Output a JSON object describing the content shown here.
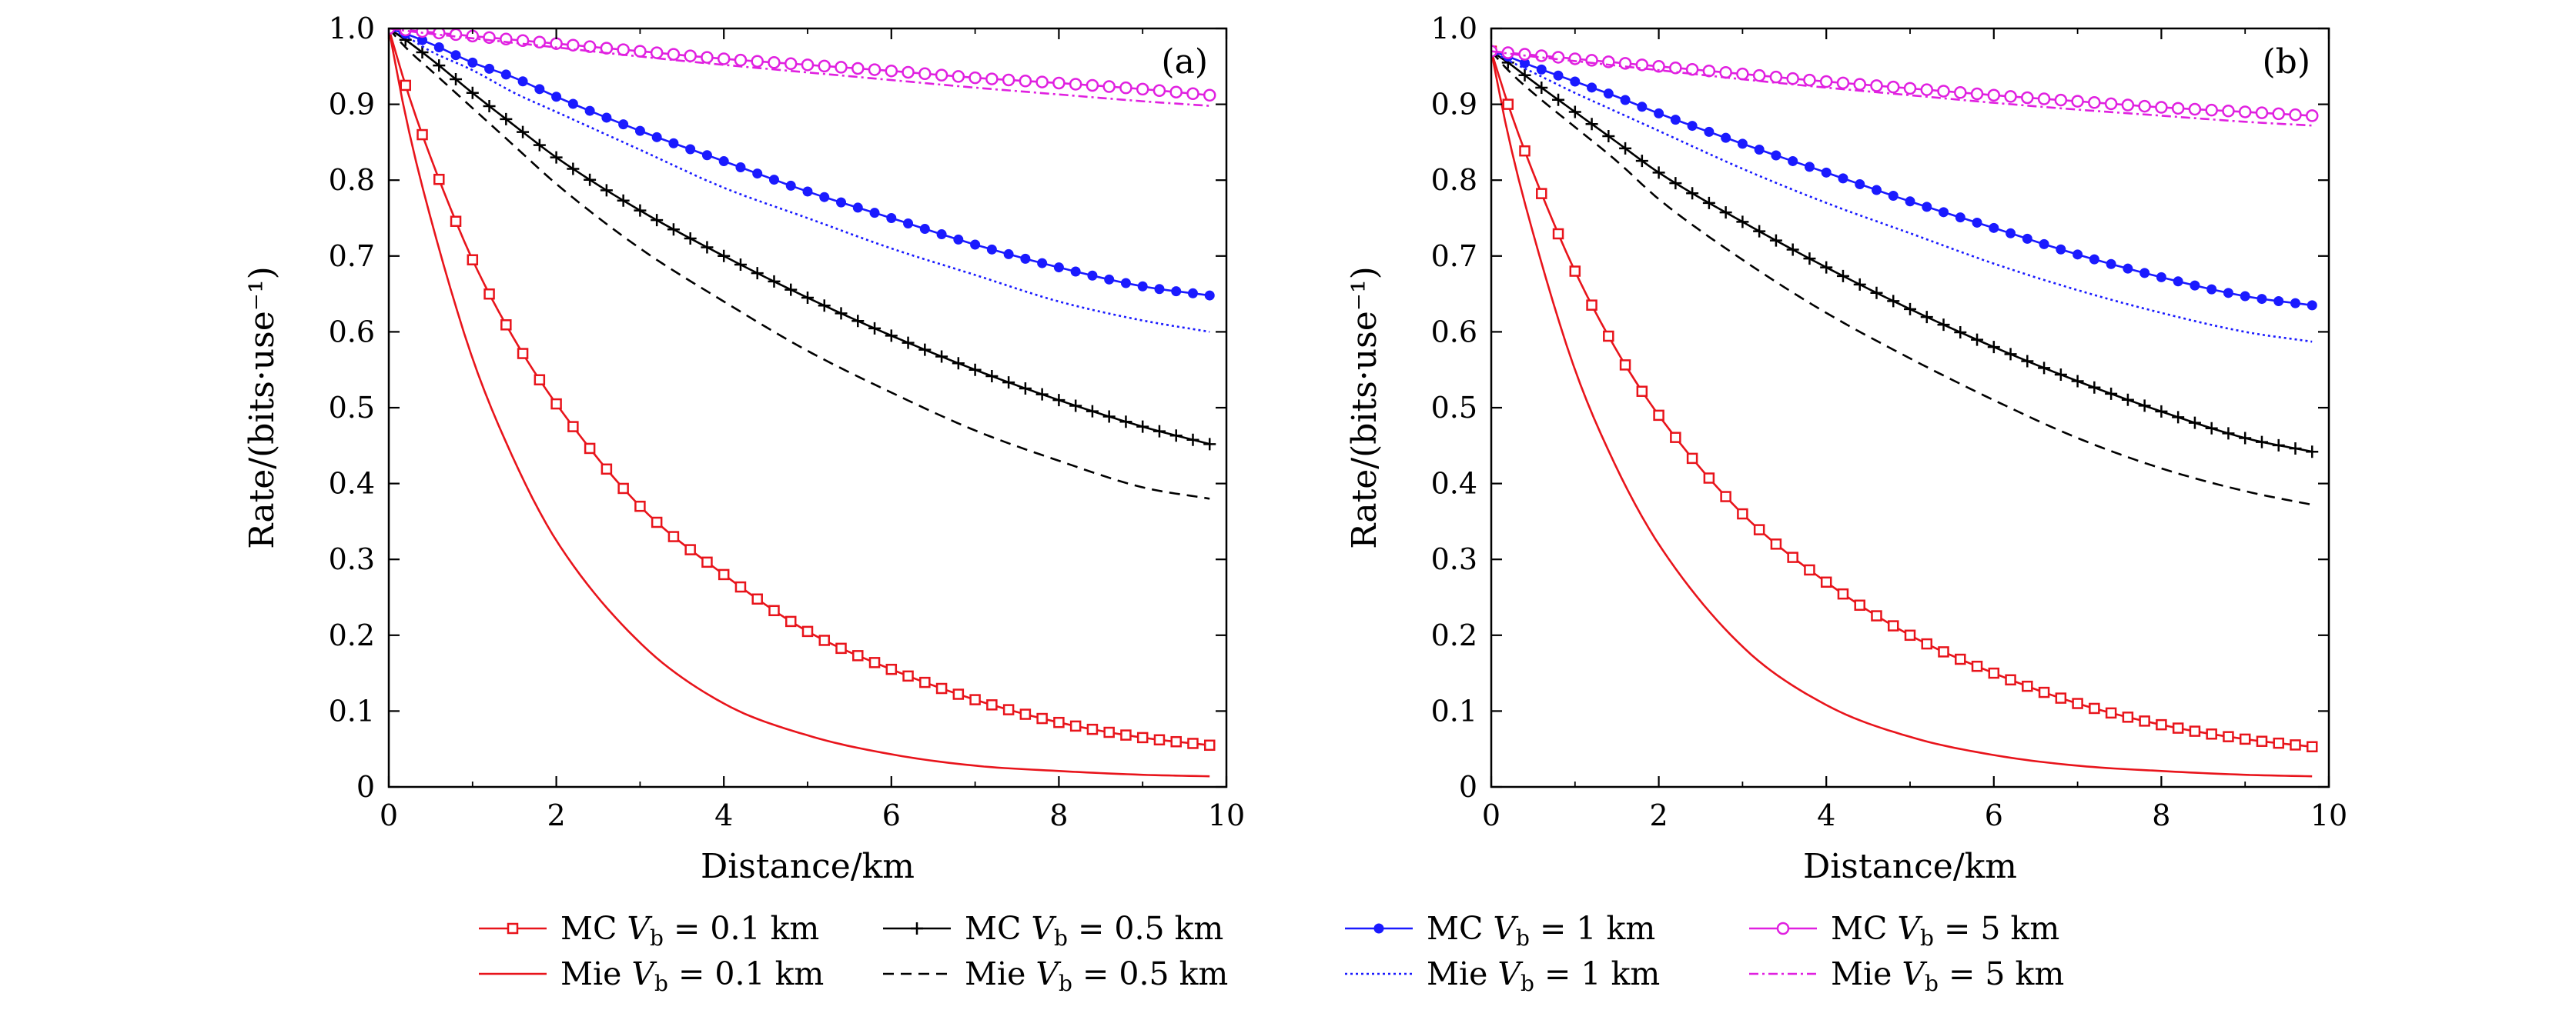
{
  "chart_data": [
    {
      "type": "line",
      "panel_label": "(a)",
      "xlabel": "Distance/km",
      "ylabel": "Rate/(bits·use⁻¹)",
      "xlim": [
        0,
        10
      ],
      "ylim": [
        0,
        1.0
      ],
      "xticks": [
        "0",
        "2",
        "4",
        "6",
        "8",
        "10"
      ],
      "yticks": [
        "0",
        "0.1",
        "0.2",
        "0.3",
        "0.4",
        "0.5",
        "0.6",
        "0.7",
        "0.8",
        "0.9",
        "1.0"
      ],
      "grid": false,
      "x": [
        0,
        0.2,
        0.5,
        1,
        1.5,
        2,
        3,
        4,
        5,
        6,
        7,
        8,
        9,
        9.8
      ],
      "series": [
        {
          "name": "MC V_b = 0.1 km",
          "color": "#e8141b",
          "style": "solid-square",
          "values": [
            1.0,
            0.925,
            0.83,
            0.695,
            0.59,
            0.505,
            0.37,
            0.28,
            0.205,
            0.155,
            0.115,
            0.085,
            0.065,
            0.055
          ]
        },
        {
          "name": "Mie V_b = 0.1 km",
          "color": "#e8141b",
          "style": "solid",
          "values": [
            1.0,
            0.885,
            0.75,
            0.565,
            0.43,
            0.325,
            0.19,
            0.11,
            0.068,
            0.043,
            0.028,
            0.021,
            0.016,
            0.014
          ]
        },
        {
          "name": "MC V_b = 0.5 km",
          "color": "#000000",
          "style": "solid-plus",
          "values": [
            1.0,
            0.985,
            0.96,
            0.915,
            0.872,
            0.83,
            0.76,
            0.7,
            0.645,
            0.595,
            0.55,
            0.51,
            0.475,
            0.452
          ]
        },
        {
          "name": "Mie V_b = 0.5 km",
          "color": "#000000",
          "style": "dashed",
          "values": [
            1.0,
            0.975,
            0.945,
            0.895,
            0.845,
            0.795,
            0.71,
            0.64,
            0.575,
            0.52,
            0.47,
            0.43,
            0.395,
            0.38
          ]
        },
        {
          "name": "MC V_b = 1 km",
          "color": "#1a1aff",
          "style": "solid-dot",
          "values": [
            1.0,
            0.993,
            0.98,
            0.955,
            0.935,
            0.91,
            0.865,
            0.825,
            0.785,
            0.75,
            0.715,
            0.685,
            0.66,
            0.648
          ]
        },
        {
          "name": "Mie V_b = 1 km",
          "color": "#1a1aff",
          "style": "dotted",
          "values": [
            1.0,
            0.99,
            0.97,
            0.945,
            0.915,
            0.89,
            0.84,
            0.79,
            0.75,
            0.71,
            0.675,
            0.64,
            0.615,
            0.6
          ]
        },
        {
          "name": "MC V_b = 5 km",
          "color": "#e020e0",
          "style": "solid-circle",
          "values": [
            1.0,
            0.998,
            0.995,
            0.99,
            0.985,
            0.98,
            0.97,
            0.96,
            0.952,
            0.944,
            0.935,
            0.928,
            0.92,
            0.912
          ]
        },
        {
          "name": "Mie V_b = 5 km",
          "color": "#e020e0",
          "style": "dashdot",
          "values": [
            1.0,
            0.997,
            0.993,
            0.987,
            0.981,
            0.975,
            0.963,
            0.952,
            0.942,
            0.932,
            0.922,
            0.913,
            0.904,
            0.898
          ]
        }
      ]
    },
    {
      "type": "line",
      "panel_label": "(b)",
      "xlabel": "Distance/km",
      "ylabel": "Rate/(bits·use⁻¹)",
      "xlim": [
        0,
        10
      ],
      "ylim": [
        0,
        1.0
      ],
      "xticks": [
        "0",
        "2",
        "4",
        "6",
        "8",
        "10"
      ],
      "yticks": [
        "0",
        "0.1",
        "0.2",
        "0.3",
        "0.4",
        "0.5",
        "0.6",
        "0.7",
        "0.8",
        "0.9",
        "1.0"
      ],
      "grid": false,
      "x": [
        0,
        0.2,
        0.5,
        1,
        1.5,
        2,
        3,
        4,
        5,
        6,
        7,
        8,
        9,
        9.8
      ],
      "series": [
        {
          "name": "MC V_b = 0.1 km",
          "color": "#e8141b",
          "style": "solid-square",
          "values": [
            0.97,
            0.9,
            0.81,
            0.68,
            0.575,
            0.49,
            0.36,
            0.27,
            0.2,
            0.15,
            0.11,
            0.082,
            0.063,
            0.053
          ]
        },
        {
          "name": "Mie V_b = 0.1 km",
          "color": "#e8141b",
          "style": "solid",
          "values": [
            0.97,
            0.86,
            0.73,
            0.55,
            0.42,
            0.32,
            0.185,
            0.108,
            0.066,
            0.042,
            0.028,
            0.021,
            0.016,
            0.014
          ]
        },
        {
          "name": "MC V_b = 0.5 km",
          "color": "#000000",
          "style": "solid-plus",
          "values": [
            0.97,
            0.955,
            0.93,
            0.89,
            0.85,
            0.81,
            0.745,
            0.685,
            0.63,
            0.58,
            0.535,
            0.495,
            0.46,
            0.442
          ]
        },
        {
          "name": "Mie V_b = 0.5 km",
          "color": "#000000",
          "style": "dashed",
          "values": [
            0.97,
            0.945,
            0.915,
            0.87,
            0.825,
            0.775,
            0.695,
            0.625,
            0.565,
            0.51,
            0.46,
            0.42,
            0.39,
            0.372
          ]
        },
        {
          "name": "MC V_b = 1 km",
          "color": "#1a1aff",
          "style": "solid-dot",
          "values": [
            0.97,
            0.963,
            0.95,
            0.93,
            0.91,
            0.888,
            0.848,
            0.81,
            0.772,
            0.737,
            0.702,
            0.672,
            0.647,
            0.635
          ]
        },
        {
          "name": "Mie V_b = 1 km",
          "color": "#1a1aff",
          "style": "dotted",
          "values": [
            0.97,
            0.958,
            0.942,
            0.915,
            0.89,
            0.865,
            0.815,
            0.77,
            0.73,
            0.69,
            0.655,
            0.625,
            0.6,
            0.587
          ]
        },
        {
          "name": "MC V_b = 5 km",
          "color": "#e020e0",
          "style": "solid-circle",
          "values": [
            0.97,
            0.968,
            0.965,
            0.96,
            0.955,
            0.95,
            0.94,
            0.93,
            0.921,
            0.912,
            0.904,
            0.896,
            0.89,
            0.885
          ]
        },
        {
          "name": "Mie V_b = 5 km",
          "color": "#e020e0",
          "style": "dashdot",
          "values": [
            0.97,
            0.967,
            0.963,
            0.957,
            0.951,
            0.945,
            0.933,
            0.922,
            0.912,
            0.902,
            0.893,
            0.885,
            0.877,
            0.872
          ]
        }
      ]
    }
  ],
  "legend": {
    "placement": "bottom",
    "items": [
      {
        "prefix": "MC ",
        "suffix": " = 0.1 km",
        "style": "solid-square",
        "color": "#e8141b"
      },
      {
        "prefix": "MC ",
        "suffix": " = 0.5 km",
        "style": "solid-plus",
        "color": "#000000"
      },
      {
        "prefix": "MC ",
        "suffix": " = 1 km",
        "style": "solid-dot",
        "color": "#1a1aff"
      },
      {
        "prefix": "MC ",
        "suffix": " = 5 km",
        "style": "solid-circle",
        "color": "#e020e0"
      },
      {
        "prefix": "Mie ",
        "suffix": " = 0.1 km",
        "style": "solid",
        "color": "#e8141b"
      },
      {
        "prefix": "Mie ",
        "suffix": " = 0.5 km",
        "style": "dashed",
        "color": "#000000"
      },
      {
        "prefix": "Mie ",
        "suffix": " = 1 km",
        "style": "dotted",
        "color": "#1a1aff"
      },
      {
        "prefix": "Mie ",
        "suffix": " = 5 km",
        "style": "dashdot",
        "color": "#e020e0"
      }
    ],
    "var_symbol": "V",
    "var_subscript": "b"
  }
}
